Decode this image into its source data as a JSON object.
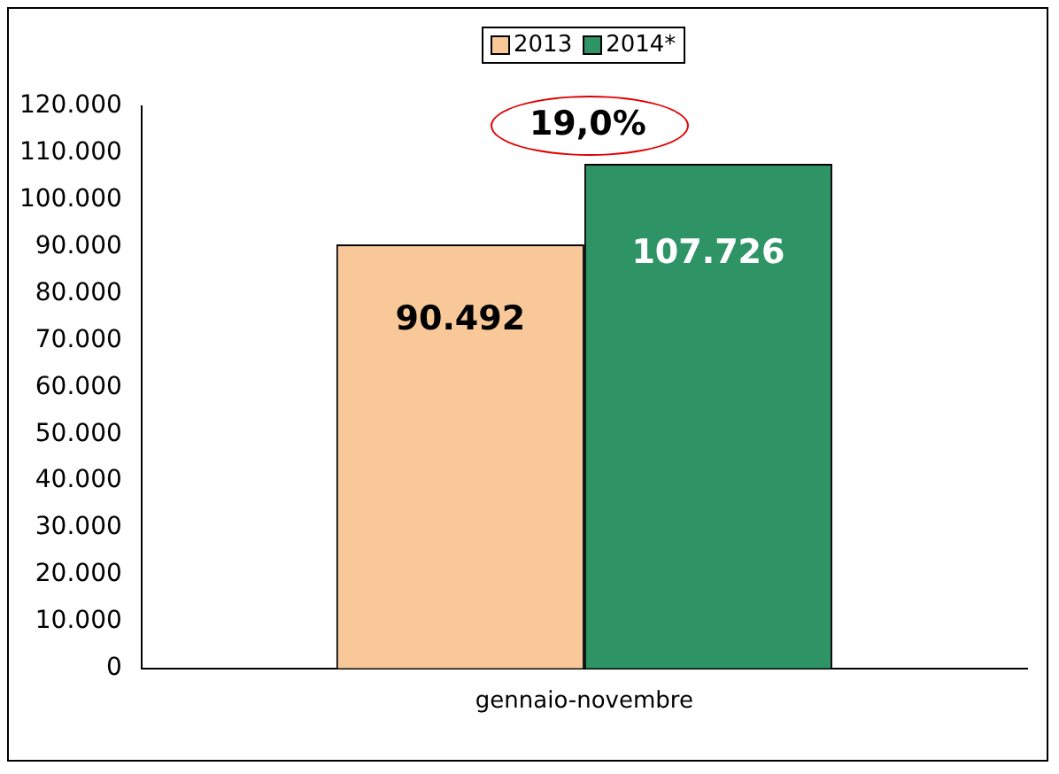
{
  "chart_data": {
    "type": "bar",
    "categories": [
      "gennaio-novembre"
    ],
    "series": [
      {
        "name": "2013",
        "color": "#f9c899",
        "values": [
          90492
        ],
        "value_labels": [
          "90.492"
        ]
      },
      {
        "name": "2014*",
        "color": "#2e9466",
        "values": [
          107726
        ],
        "value_labels": [
          "107.726"
        ]
      }
    ],
    "ylim": [
      0,
      120000
    ],
    "yticks": [
      {
        "value": 0,
        "label": "0"
      },
      {
        "value": 10000,
        "label": "10.000"
      },
      {
        "value": 20000,
        "label": "20.000"
      },
      {
        "value": 30000,
        "label": "30.000"
      },
      {
        "value": 40000,
        "label": "40.000"
      },
      {
        "value": 50000,
        "label": "50.000"
      },
      {
        "value": 60000,
        "label": "60.000"
      },
      {
        "value": 70000,
        "label": "70.000"
      },
      {
        "value": 80000,
        "label": "80.000"
      },
      {
        "value": 90000,
        "label": "90.000"
      },
      {
        "value": 100000,
        "label": "100.000"
      },
      {
        "value": 110000,
        "label": "110.000"
      },
      {
        "value": 120000,
        "label": "120.000"
      }
    ],
    "annotations": [
      "19,0%"
    ],
    "legend": "top",
    "grid": false
  }
}
